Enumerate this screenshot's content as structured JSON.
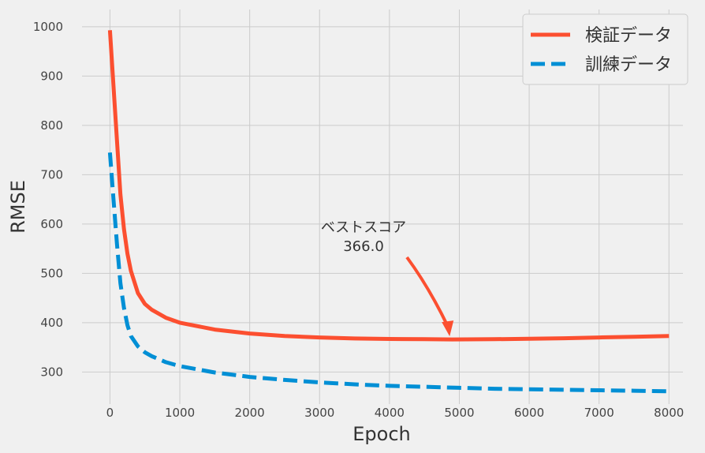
{
  "chart_data": {
    "type": "line",
    "title": "",
    "xlabel": "Epoch",
    "ylabel": "RMSE",
    "xlim": [
      -400,
      8200
    ],
    "ylim": [
      235,
      1035
    ],
    "xticks": [
      0,
      1000,
      2000,
      3000,
      4000,
      5000,
      6000,
      7000,
      8000
    ],
    "yticks": [
      300,
      400,
      500,
      600,
      700,
      800,
      900,
      1000
    ],
    "grid": true,
    "legend_position": "top-right",
    "series": [
      {
        "name": "検証データ",
        "color": "#fc4f30",
        "style": "solid",
        "x": [
          0,
          50,
          100,
          150,
          200,
          250,
          300,
          400,
          500,
          600,
          800,
          1000,
          1500,
          2000,
          2500,
          3000,
          3500,
          4000,
          4500,
          4900,
          5500,
          6000,
          6500,
          7000,
          7500,
          8000
        ],
        "y": [
          993,
          880,
          770,
          660,
          590,
          540,
          505,
          460,
          438,
          426,
          410,
          400,
          386,
          378,
          373,
          370,
          368,
          367,
          366.5,
          366,
          366.5,
          367.5,
          368.5,
          370,
          371.5,
          373
        ]
      },
      {
        "name": "訓練データ",
        "color": "#008fd5",
        "style": "dashed",
        "x": [
          0,
          50,
          100,
          150,
          200,
          250,
          300,
          400,
          500,
          600,
          800,
          1000,
          1500,
          2000,
          2500,
          3000,
          3500,
          4000,
          4500,
          5000,
          5500,
          6000,
          6500,
          7000,
          7500,
          8000
        ],
        "y": [
          745,
          650,
          560,
          480,
          430,
          395,
          373,
          352,
          340,
          332,
          320,
          312,
          299,
          290,
          284,
          279,
          275,
          272,
          270,
          268,
          266,
          265,
          264,
          263,
          262,
          261
        ]
      }
    ],
    "annotation": {
      "label": "ベストスコア",
      "value": "366.0",
      "point": [
        4850,
        366
      ],
      "arrow_color": "#fc4f30"
    }
  }
}
